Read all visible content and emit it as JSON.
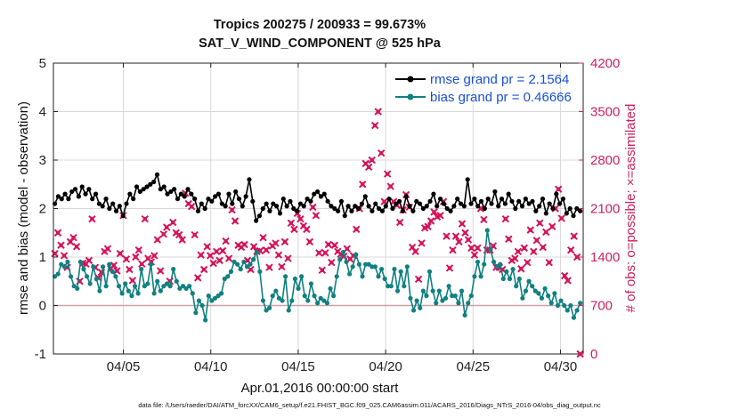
{
  "chart_data": {
    "type": "line",
    "title_line1": "Tropics 200275 / 200933 = 99.673%",
    "title_line2": "SAT_V_WIND_COMPONENT @ 525 hPa",
    "xlabel": "Apr.01,2016 00:00:00 start",
    "ylabel_left": "rmse and bias (model - observation)",
    "ylabel_right": "# of obs: o=possible; ×=assimilated",
    "footnote": "data file: /Users/raeder/DAI/ATM_forcXX/CAM6_setup/f.e21.FHIST_BGC.f09_025.CAM6assim.011/ACARS_2016/Diags_NTrS_2016-04/obs_diag_output.nc",
    "xlim": [
      1,
      31.3
    ],
    "ylim_left": [
      -1,
      5
    ],
    "ylim_right": [
      0,
      4200
    ],
    "x_ticks": [
      5,
      10,
      15,
      20,
      25,
      30
    ],
    "x_tick_labels": [
      "04/05",
      "04/10",
      "04/15",
      "04/20",
      "04/25",
      "04/30"
    ],
    "y_ticks_left": [
      -1,
      0,
      1,
      2,
      3,
      4,
      5
    ],
    "y_tick_labels_left": [
      "-1",
      "0",
      "1",
      "2",
      "3",
      "4",
      "5"
    ],
    "y_ticks_right": [
      0,
      700,
      1400,
      2100,
      2800,
      3500,
      4200
    ],
    "y_tick_labels_right": [
      "0",
      "700",
      "1400",
      "2100",
      "2800",
      "3500",
      "4200"
    ],
    "grid": true,
    "zero_line": 0,
    "legend_position": "top-right",
    "series": [
      {
        "name": "rmse grand pr = 2.1564",
        "color": "#000000",
        "axis": "left",
        "values": [
          2.1,
          2.25,
          2.2,
          2.3,
          2.2,
          2.35,
          2.4,
          2.25,
          2.45,
          2.3,
          2.4,
          2.2,
          2.3,
          2.1,
          2.05,
          2.2,
          2.0,
          2.1,
          1.95,
          2.05,
          1.85,
          2.1,
          2.3,
          2.2,
          2.45,
          2.35,
          2.4,
          2.45,
          2.5,
          2.55,
          2.7,
          2.4,
          2.45,
          2.3,
          2.35,
          2.4,
          2.2,
          2.3,
          2.25,
          2.4,
          2.3,
          2.2,
          1.95,
          2.1,
          2.0,
          2.2,
          2.15,
          2.25,
          2.3,
          2.1,
          2.05,
          2.3,
          2.1,
          2.35,
          2.2,
          2.05,
          2.25,
          2.6,
          2.15,
          1.75,
          1.85,
          2.0,
          2.1,
          1.95,
          2.1,
          2.05,
          1.9,
          2.2,
          2.05,
          2.15,
          2.0,
          1.95,
          2.1,
          2.05,
          2.2,
          2.15,
          2.3,
          2.35,
          2.25,
          2.3,
          2.15,
          2.05,
          2.0,
          1.95,
          2.15,
          1.85,
          2.05,
          1.95,
          2.05,
          2.0,
          2.1,
          2.25,
          2.05,
          1.95,
          2.1,
          2.0,
          1.95,
          2.05,
          2.2,
          2.0,
          2.1,
          2.15,
          1.95,
          2.25,
          2.05,
          1.95,
          2.15,
          2.1,
          2.0,
          2.05,
          2.15,
          2.3,
          2.05,
          2.2,
          2.1,
          2.0,
          1.95,
          2.05,
          2.2,
          2.1,
          2.05,
          2.6,
          2.1,
          2.2,
          2.05,
          2.15,
          2.0,
          2.2,
          2.1,
          2.35,
          2.05,
          2.2,
          2.1,
          2.3,
          2.15,
          2.0,
          2.15,
          2.05,
          2.2,
          2.1,
          2.15,
          1.95,
          2.05,
          2.2,
          1.9,
          2.1,
          2.0,
          2.3,
          2.1,
          2.2,
          1.9,
          2.0,
          1.85,
          2.0,
          1.95
        ]
      },
      {
        "name": "bias grand pr = 0.46666",
        "color": "#108080",
        "axis": "left",
        "values": [
          0.6,
          0.65,
          0.85,
          0.8,
          0.9,
          0.6,
          0.4,
          0.35,
          0.9,
          0.75,
          0.6,
          0.45,
          0.8,
          0.55,
          0.3,
          0.8,
          0.4,
          0.85,
          0.7,
          0.6,
          0.4,
          0.25,
          0.45,
          0.3,
          0.2,
          0.4,
          0.25,
          0.75,
          0.4,
          0.45,
          0.85,
          0.25,
          0.5,
          0.3,
          0.4,
          0.45,
          0.4,
          0.75,
          0.5,
          0.35,
          0.4,
          0.35,
          0.4,
          0.25,
          -0.15,
          0.1,
          0.0,
          -0.3,
          0.2,
          0.1,
          0.15,
          0.2,
          0.25,
          0.55,
          0.6,
          0.7,
          0.9,
          0.85,
          0.75,
          0.9,
          0.8,
          0.85,
          0.95,
          1.1,
          0.7,
          0.1,
          -0.1,
          -0.05,
          0.2,
          0.3,
          0.15,
          0.1,
          0.6,
          -0.1,
          0.1,
          0.55,
          0.35,
          0.6,
          0.2,
          0.1,
          0.45,
          0.2,
          0.05,
          0.15,
          0.1,
          0.05,
          0.35,
          0.2,
          0.6,
          0.95,
          1.1,
          0.9,
          0.65,
          0.8,
          1.05,
          0.85,
          0.6,
          0.85,
          0.85,
          0.8,
          0.8,
          0.6,
          0.75,
          0.55,
          0.4,
          0.4,
          0.75,
          0.3,
          0.7,
          0.4,
          0.8,
          0.15,
          -0.1,
          0.1,
          -0.05,
          0.3,
          0.2,
          0.7,
          0.3,
          0.05,
          0.3,
          0.1,
          0.15,
          0.4,
          0.2,
          0.2,
          0.05,
          0.3,
          -0.2,
          0.05,
          0.2,
          0.6,
          0.9,
          0.6,
          0.85,
          1.55,
          1.15,
          0.9,
          0.8,
          0.85,
          0.55,
          0.7,
          0.55,
          0.75,
          0.4,
          0.55,
          0.15,
          0.3,
          0.5,
          0.4,
          0.3,
          0.25,
          0.15,
          0.35,
          0.2,
          0.05,
          0.25,
          0.0,
          0.1,
          0.0,
          -0.1,
          0.0,
          -0.25,
          -0.1,
          0.05
        ]
      },
      {
        "name": "# of obs assimilated",
        "color": "#d4145a",
        "axis": "right",
        "values": [
          1450,
          1750,
          1570,
          1420,
          1250,
          1620,
          1680,
          1550,
          1050,
          1310,
          1300,
          1350,
          1950,
          1250,
          1100,
          1180,
          1480,
          1520,
          1230,
          1280,
          1200,
          1450,
          2000,
          1370,
          1220,
          1060,
          1400,
          1500,
          1300,
          1950,
          1380,
          1330,
          1420,
          1650,
          1200,
          1730,
          1830,
          1050,
          1900,
          1750,
          1720,
          1650,
          2320,
          2170,
          2130,
          1720,
          1100,
          1430,
          1220,
          1550,
          1420,
          1310,
          1480,
          1350,
          1490,
          1630,
          1380,
          2080,
          1920,
          1570,
          1540,
          1580,
          1350,
          1220,
          1550,
          1480,
          1490,
          1680,
          1500,
          1250,
          1560,
          1600,
          1430,
          1260,
          1620,
          1380,
          1890,
          1800,
          2030,
          1950,
          1850,
          1800,
          1620,
          2120,
          2000,
          1460,
          1210,
          1460,
          1580,
          1320,
          1570,
          1480,
          1440,
          1410,
          1520,
          1370,
          1420,
          1800,
          2100,
          2450,
          2750,
          2700,
          2800,
          3300,
          3500,
          2900,
          2200,
          2600,
          2420,
          2200,
          2150,
          1900,
          2080,
          2300,
          2120,
          1540,
          1480,
          1080,
          1600,
          1820,
          1840,
          1920,
          2050,
          1980,
          2000,
          2200,
          1700,
          1240,
          1500,
          1700,
          1620,
          1880,
          1750,
          1650,
          1530,
          1430,
          1530,
          2100,
          1940,
          1500,
          1500,
          1560,
          1250,
          1250,
          1220,
          1950,
          1660,
          1350,
          1380,
          1480,
          1230,
          1530,
          1320,
          1790,
          1480,
          1640,
          1890,
          1540,
          1760,
          1320,
          1840,
          2100,
          2380,
          1960,
          1130,
          1060,
          1500,
          1700,
          1400,
          0
        ]
      }
    ]
  }
}
